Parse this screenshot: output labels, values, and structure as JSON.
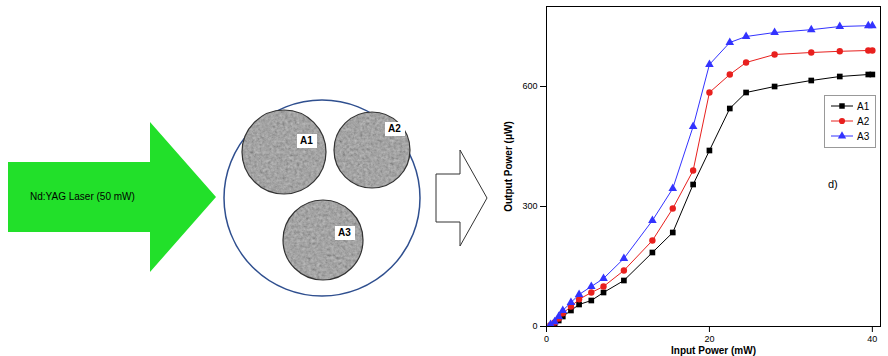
{
  "diagram": {
    "source_label": "Nd:YAG Laser (50 mW)",
    "samples": [
      "A1",
      "A2",
      "A3"
    ]
  },
  "chart_data": {
    "type": "line",
    "x_label": "Input Power (mW)",
    "y_label": "Output Power (μW)",
    "annotation": "d)",
    "x": [
      0.5,
      1,
      1.5,
      2,
      3,
      4,
      5.5,
      7,
      9.5,
      13,
      15.5,
      18,
      20,
      22.5,
      24.5,
      28,
      32.5,
      36,
      39.5,
      40
    ],
    "series": [
      {
        "name": "A1",
        "color": "#000000",
        "marker": "square",
        "values": [
          2,
          8,
          15,
          25,
          40,
          55,
          65,
          85,
          115,
          185,
          235,
          355,
          440,
          545,
          585,
          600,
          615,
          625,
          630,
          630
        ]
      },
      {
        "name": "A2",
        "color": "#e8201e",
        "marker": "circle",
        "values": [
          3,
          10,
          20,
          33,
          50,
          68,
          85,
          100,
          140,
          215,
          295,
          390,
          585,
          630,
          660,
          680,
          685,
          688,
          690,
          690
        ]
      },
      {
        "name": "A3",
        "color": "#3333ff",
        "marker": "triangle",
        "values": [
          5,
          12,
          25,
          40,
          60,
          80,
          100,
          120,
          170,
          265,
          345,
          500,
          655,
          710,
          725,
          735,
          742,
          750,
          752,
          752
        ]
      }
    ],
    "xlim": [
      0,
      41
    ],
    "xticks": [
      0,
      20,
      40
    ],
    "ylim": [
      0,
      800
    ],
    "yticks": [
      0,
      300,
      600
    ],
    "grid": false,
    "legend": "right"
  }
}
